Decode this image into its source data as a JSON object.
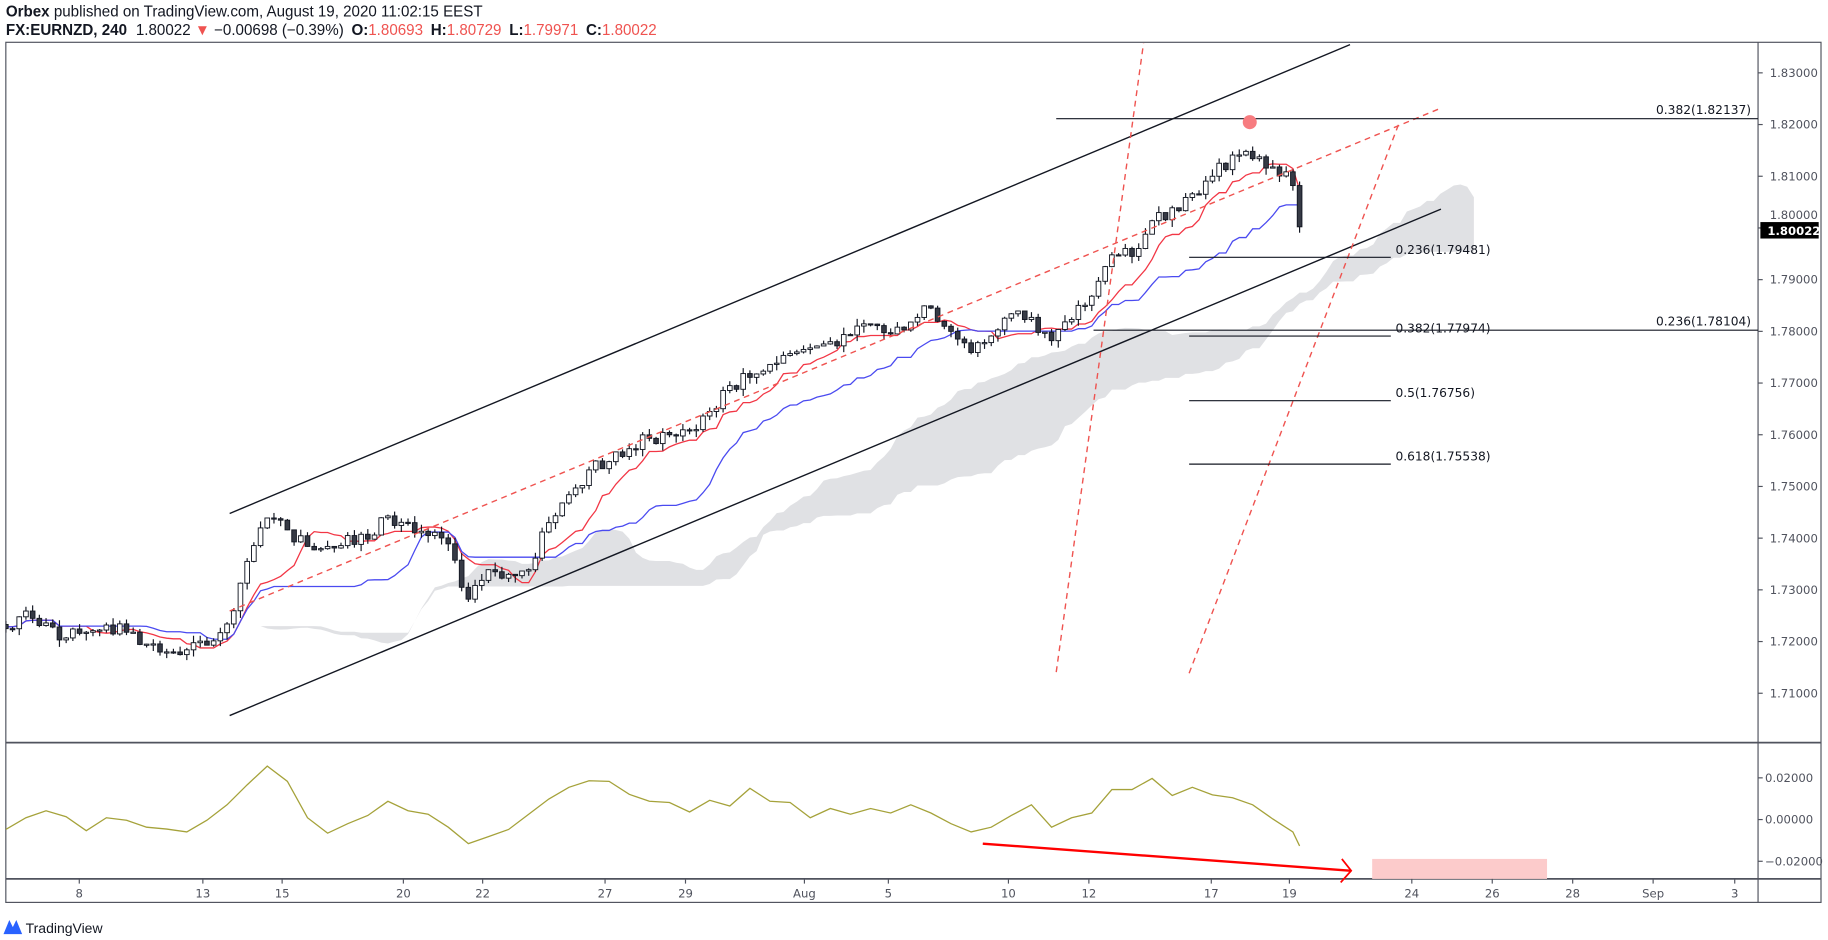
{
  "header": {
    "publisher": "Orbex",
    "published_text": "published on TradingView.com, August 19, 2020 11:02:15 EEST",
    "symbol": "FX:EURNZD, 240",
    "last": "1.80022",
    "change": "−0.00698 (−0.39%)",
    "o_label": "O:",
    "o": "1.80693",
    "h_label": "H:",
    "h": "1.80729",
    "l_label": "L:",
    "l": "1.79971",
    "c_label": "C:",
    "c": "1.80022",
    "down_icon": "triangle-down-icon"
  },
  "colors": {
    "bull_body": "#ffffff",
    "bear_body": "#363a45",
    "tenkan": "#f23645",
    "kijun": "#4a4af0",
    "cloud": "#e0e1e4",
    "oscillator": "#a5a23a",
    "fib_red": "#ef5350",
    "target_zone": "#fccbcb",
    "marker_dot": "#f77c80"
  },
  "price_axis": {
    "ticks": [
      "1.83000",
      "1.82000",
      "1.81000",
      "1.80000",
      "1.79000",
      "1.78000",
      "1.77000",
      "1.76000",
      "1.75000",
      "1.74000",
      "1.73000",
      "1.72000",
      "1.71000"
    ],
    "last_price_label": "1.80022"
  },
  "oscillator_axis": {
    "ticks": [
      "0.02000",
      "0.00000",
      "−0.02000"
    ]
  },
  "time_axis": {
    "ticks": [
      "8",
      "13",
      "15",
      "20",
      "22",
      "27",
      "29",
      "Aug",
      "5",
      "10",
      "12",
      "17",
      "19",
      "24",
      "26",
      "28",
      "Sep",
      "3"
    ]
  },
  "annotations": {
    "fib_top_382": "0.382(1.82137)",
    "fib_top_236": "0.236(1.78104)",
    "retracements": [
      "0.236(1.79481)",
      "0.382(1.77974)",
      "0.5(1.76756)",
      "0.618(1.75538)"
    ]
  },
  "chart_data": {
    "type": "candlestick",
    "symbol": "FX:EURNZD",
    "interval": "240",
    "ylim": [
      1.703,
      1.836
    ],
    "indicators": [
      "Ichimoku Cloud (tenkan, kijun, cloud)",
      "oscillator"
    ],
    "closes_12h": [
      1.7225,
      1.7259,
      1.7236,
      1.7207,
      1.7218,
      1.7232,
      1.7218,
      1.7195,
      1.718,
      1.7184,
      1.7193,
      1.7234,
      1.7355,
      1.7439,
      1.7416,
      1.7384,
      1.7384,
      1.7405,
      1.7398,
      1.7443,
      1.743,
      1.7405,
      1.7389,
      1.7282,
      1.7339,
      1.733,
      1.7339,
      1.743,
      1.7484,
      1.7532,
      1.7548,
      1.7573,
      1.7593,
      1.76,
      1.7609,
      1.7645,
      1.7695,
      1.7711,
      1.7736,
      1.7757,
      1.7768,
      1.778,
      1.7793,
      1.7814,
      1.7795,
      1.7818,
      1.7845,
      1.78,
      1.7759,
      1.7791,
      1.7834,
      1.7827,
      1.7782,
      1.7823,
      1.7868,
      1.7948,
      1.7945,
      1.8014,
      1.8039,
      1.8066,
      1.81,
      1.8141,
      1.8134,
      1.8118,
      1.8082
    ],
    "last_close": 1.80022,
    "oscillator_12h": [
      -0.0051,
      0.0006,
      0.004,
      0.0011,
      -0.0057,
      0.0006,
      -0.0006,
      -0.004,
      -0.0049,
      -0.0063,
      -0.0006,
      0.0069,
      0.0166,
      0.0257,
      0.0183,
      0.0006,
      -0.0069,
      -0.0023,
      0.0017,
      0.0086,
      0.004,
      0.0023,
      -0.004,
      -0.012,
      -0.0086,
      -0.0051,
      0.0023,
      0.0097,
      0.0154,
      0.0186,
      0.0183,
      0.012,
      0.0086,
      0.008,
      0.0034,
      0.0091,
      0.0063,
      0.0149,
      0.0086,
      0.008,
      0.0006,
      0.0051,
      0.0023,
      0.0051,
      0.0029,
      0.0069,
      0.0029,
      -0.0023,
      -0.0063,
      -0.004,
      0.0017,
      0.0069,
      -0.004,
      0.0006,
      0.0029,
      0.0143,
      0.0143,
      0.0197,
      0.0114,
      0.0154,
      0.0117,
      0.0103,
      0.0069,
      0.0,
      -0.0063
    ],
    "oscillator_last": -0.0131,
    "oscillator_ylim": [
      -0.029,
      0.036
    ],
    "fib_levels": [
      {
        "ratio": 0.382,
        "price": 1.82137
      },
      {
        "ratio": 0.236,
        "price": 1.78104
      },
      {
        "ratio": 0.236,
        "price": 1.79481
      },
      {
        "ratio": 0.382,
        "price": 1.77974
      },
      {
        "ratio": 0.5,
        "price": 1.76756
      },
      {
        "ratio": 0.618,
        "price": 1.75538
      }
    ]
  },
  "footer": {
    "brand": "TradingView"
  }
}
